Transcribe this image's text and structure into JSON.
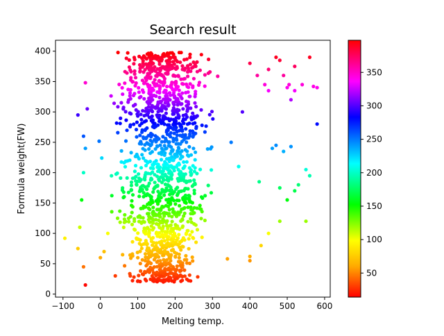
{
  "chart_data": {
    "type": "scatter",
    "title": "Search result",
    "xlabel": "Melting temp.",
    "ylabel": "Formula weight(FW)",
    "xlim": [
      -120,
      615
    ],
    "ylim": [
      -5,
      418
    ],
    "x_ticks": [
      -100,
      0,
      100,
      200,
      300,
      400,
      500,
      600
    ],
    "y_ticks": [
      0,
      50,
      100,
      150,
      200,
      250,
      300,
      350,
      400
    ],
    "colorbar": {
      "range": [
        14,
        398
      ],
      "ticks": [
        50,
        100,
        150,
        200,
        250,
        300,
        350
      ],
      "colormap": "hsv-like (red-orange-yellow-green-cyan-blue-magenta-red)",
      "encodes": "Formula weight(FW)"
    },
    "grid": false,
    "legend": "none",
    "points_sample": [
      [
        -95,
        92
      ],
      [
        -40,
        15
      ],
      [
        -45,
        45
      ],
      [
        -60,
        75
      ],
      [
        -55,
        110
      ],
      [
        -50,
        155
      ],
      [
        -45,
        200
      ],
      [
        -40,
        240
      ],
      [
        -60,
        295
      ],
      [
        -40,
        348
      ],
      [
        -45,
        260
      ],
      [
        -35,
        305
      ],
      [
        0,
        60
      ],
      [
        10,
        70
      ],
      [
        20,
        100
      ],
      [
        40,
        30
      ],
      [
        80,
        30
      ],
      [
        90,
        28
      ],
      [
        160,
        45
      ],
      [
        175,
        32
      ],
      [
        220,
        47
      ],
      [
        340,
        58
      ],
      [
        400,
        55
      ],
      [
        400,
        62
      ],
      [
        430,
        80
      ],
      [
        450,
        100
      ],
      [
        480,
        120
      ],
      [
        550,
        120
      ],
      [
        500,
        155
      ],
      [
        520,
        170
      ],
      [
        530,
        180
      ],
      [
        480,
        175
      ],
      [
        550,
        205
      ],
      [
        560,
        195
      ],
      [
        425,
        185
      ],
      [
        460,
        240
      ],
      [
        470,
        245
      ],
      [
        490,
        235
      ],
      [
        510,
        243
      ],
      [
        580,
        280
      ],
      [
        400,
        380
      ],
      [
        420,
        360
      ],
      [
        450,
        370
      ],
      [
        470,
        390
      ],
      [
        480,
        385
      ],
      [
        490,
        360
      ],
      [
        500,
        340
      ],
      [
        505,
        345
      ],
      [
        520,
        375
      ],
      [
        540,
        345
      ],
      [
        560,
        390
      ],
      [
        570,
        342
      ],
      [
        580,
        340
      ],
      [
        510,
        320
      ],
      [
        520,
        335
      ],
      [
        450,
        335
      ],
      [
        440,
        345
      ],
      [
        380,
        300
      ],
      [
        350,
        250
      ],
      [
        370,
        210
      ]
    ]
  }
}
